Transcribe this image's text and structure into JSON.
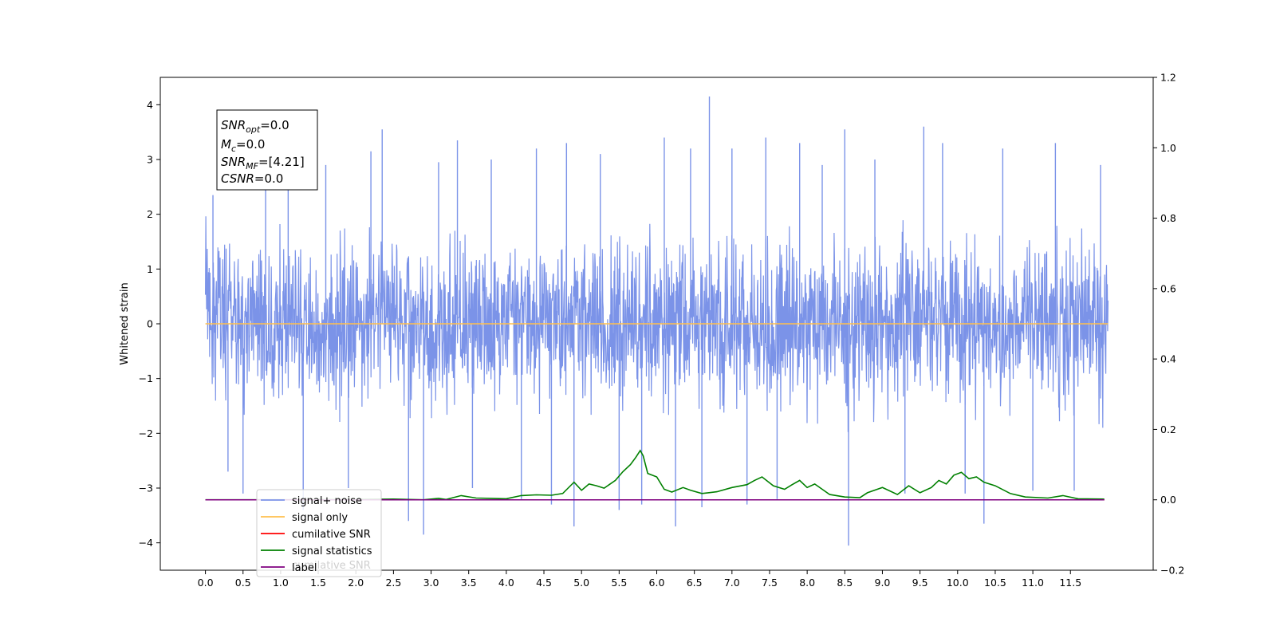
{
  "chart_data": {
    "type": "line",
    "ylabel": "Whitened strain",
    "xlim": [
      -0.6,
      12.6
    ],
    "ylim": [
      -4.5,
      4.5
    ],
    "ylim_right": [
      -0.2,
      1.2
    ],
    "x_ticks": [
      "0.0",
      "0.5",
      "1.0",
      "1.5",
      "2.0",
      "2.5",
      "3.0",
      "3.5",
      "4.0",
      "4.5",
      "5.0",
      "5.5",
      "6.0",
      "6.5",
      "7.0",
      "7.5",
      "8.0",
      "8.5",
      "9.0",
      "9.5",
      "10.0",
      "10.5",
      "11.0",
      "11.5"
    ],
    "y_ticks_left": [
      "−4",
      "−3",
      "−2",
      "−1",
      "0",
      "1",
      "2",
      "3",
      "4"
    ],
    "y_ticks_right": [
      "−0.2",
      "0.0",
      "0.2",
      "0.4",
      "0.6",
      "0.8",
      "1.0",
      "1.2"
    ],
    "legend": {
      "placement": "lower-left",
      "entries": [
        "signal+ noise",
        "signal only",
        "cumilative SNR",
        "signal statistics",
        "label"
      ],
      "ghost_text": "cumilative SNR"
    },
    "annotation": {
      "snr_opt": {
        "main": "SNR",
        "sub": "opt",
        "value": "=0.0"
      },
      "mc": {
        "main": "M",
        "sub": "c",
        "value": "=0.0"
      },
      "snr_mf": {
        "main": "SNR",
        "sub": "MF",
        "value": "=[4.21]"
      },
      "csnr": {
        "main": "CSNR",
        "value": "=0.0"
      }
    },
    "series": [
      {
        "name": "signal+ noise",
        "color": "#7b93e8",
        "axis": "left",
        "x_range": [
          0.0,
          12.0
        ],
        "typical_envelope": [
          -2.3,
          2.3
        ],
        "spikes": [
          [
            0.1,
            2.35
          ],
          [
            0.3,
            -2.7
          ],
          [
            0.5,
            -3.1
          ],
          [
            0.8,
            2.6
          ],
          [
            1.1,
            3.05
          ],
          [
            1.3,
            -3.4
          ],
          [
            1.6,
            2.9
          ],
          [
            1.9,
            -3.0
          ],
          [
            2.2,
            3.15
          ],
          [
            2.35,
            3.55
          ],
          [
            2.7,
            -3.6
          ],
          [
            2.9,
            -3.85
          ],
          [
            3.1,
            2.95
          ],
          [
            3.35,
            3.35
          ],
          [
            3.55,
            -3.0
          ],
          [
            3.8,
            3.0
          ],
          [
            4.2,
            -3.2
          ],
          [
            4.4,
            3.2
          ],
          [
            4.6,
            -3.3
          ],
          [
            4.8,
            3.3
          ],
          [
            4.9,
            -3.7
          ],
          [
            5.25,
            3.1
          ],
          [
            5.5,
            -3.4
          ],
          [
            5.8,
            -3.3
          ],
          [
            6.1,
            3.4
          ],
          [
            6.25,
            -3.7
          ],
          [
            6.45,
            3.2
          ],
          [
            6.6,
            -3.35
          ],
          [
            6.7,
            4.15
          ],
          [
            7.0,
            3.2
          ],
          [
            7.2,
            -3.3
          ],
          [
            7.45,
            3.4
          ],
          [
            7.6,
            -3.2
          ],
          [
            7.9,
            3.3
          ],
          [
            8.2,
            2.9
          ],
          [
            8.5,
            3.55
          ],
          [
            8.55,
            -4.05
          ],
          [
            8.9,
            3.0
          ],
          [
            9.3,
            -3.1
          ],
          [
            9.55,
            3.6
          ],
          [
            9.8,
            3.3
          ],
          [
            10.1,
            -3.1
          ],
          [
            10.35,
            -3.65
          ],
          [
            10.6,
            3.2
          ],
          [
            11.0,
            -3.05
          ],
          [
            11.3,
            3.3
          ],
          [
            11.55,
            -3.05
          ],
          [
            11.9,
            2.9
          ]
        ]
      },
      {
        "name": "signal only",
        "color": "#ffbf4d",
        "axis": "left",
        "points": [
          [
            0.0,
            0.0
          ],
          [
            12.0,
            0.0
          ]
        ]
      },
      {
        "name": "cumilative SNR",
        "color": "#ff0000",
        "axis": "right",
        "points": [
          [
            0.0,
            0.0
          ],
          [
            11.95,
            0.0
          ]
        ]
      },
      {
        "name": "signal statistics",
        "color": "#008000",
        "axis": "right",
        "points": [
          [
            0.0,
            0.0
          ],
          [
            1.0,
            0.0
          ],
          [
            2.0,
            0.001
          ],
          [
            2.5,
            0.002
          ],
          [
            2.9,
            0.0
          ],
          [
            3.1,
            0.004
          ],
          [
            3.2,
            0.001
          ],
          [
            3.4,
            0.012
          ],
          [
            3.6,
            0.005
          ],
          [
            3.8,
            0.004
          ],
          [
            4.0,
            0.003
          ],
          [
            4.2,
            0.012
          ],
          [
            4.4,
            0.014
          ],
          [
            4.6,
            0.013
          ],
          [
            4.75,
            0.018
          ],
          [
            4.9,
            0.05
          ],
          [
            5.0,
            0.027
          ],
          [
            5.1,
            0.045
          ],
          [
            5.2,
            0.04
          ],
          [
            5.3,
            0.033
          ],
          [
            5.45,
            0.055
          ],
          [
            5.55,
            0.08
          ],
          [
            5.65,
            0.1
          ],
          [
            5.72,
            0.12
          ],
          [
            5.78,
            0.14
          ],
          [
            5.82,
            0.125
          ],
          [
            5.88,
            0.075
          ],
          [
            6.0,
            0.065
          ],
          [
            6.1,
            0.03
          ],
          [
            6.2,
            0.022
          ],
          [
            6.35,
            0.035
          ],
          [
            6.45,
            0.027
          ],
          [
            6.6,
            0.018
          ],
          [
            6.8,
            0.023
          ],
          [
            7.0,
            0.035
          ],
          [
            7.2,
            0.043
          ],
          [
            7.3,
            0.055
          ],
          [
            7.4,
            0.065
          ],
          [
            7.55,
            0.04
          ],
          [
            7.7,
            0.03
          ],
          [
            7.8,
            0.043
          ],
          [
            7.9,
            0.055
          ],
          [
            8.0,
            0.035
          ],
          [
            8.1,
            0.045
          ],
          [
            8.3,
            0.015
          ],
          [
            8.5,
            0.008
          ],
          [
            8.7,
            0.006
          ],
          [
            8.8,
            0.02
          ],
          [
            9.0,
            0.035
          ],
          [
            9.2,
            0.015
          ],
          [
            9.35,
            0.04
          ],
          [
            9.5,
            0.02
          ],
          [
            9.65,
            0.035
          ],
          [
            9.75,
            0.055
          ],
          [
            9.85,
            0.045
          ],
          [
            9.95,
            0.07
          ],
          [
            10.05,
            0.078
          ],
          [
            10.15,
            0.06
          ],
          [
            10.25,
            0.065
          ],
          [
            10.35,
            0.05
          ],
          [
            10.5,
            0.04
          ],
          [
            10.7,
            0.018
          ],
          [
            10.9,
            0.008
          ],
          [
            11.2,
            0.005
          ],
          [
            11.4,
            0.012
          ],
          [
            11.6,
            0.003
          ],
          [
            11.95,
            0.002
          ]
        ]
      },
      {
        "name": "label",
        "color": "#800080",
        "axis": "right",
        "points": [
          [
            0.0,
            0.0
          ],
          [
            11.95,
            0.0
          ]
        ]
      }
    ]
  }
}
